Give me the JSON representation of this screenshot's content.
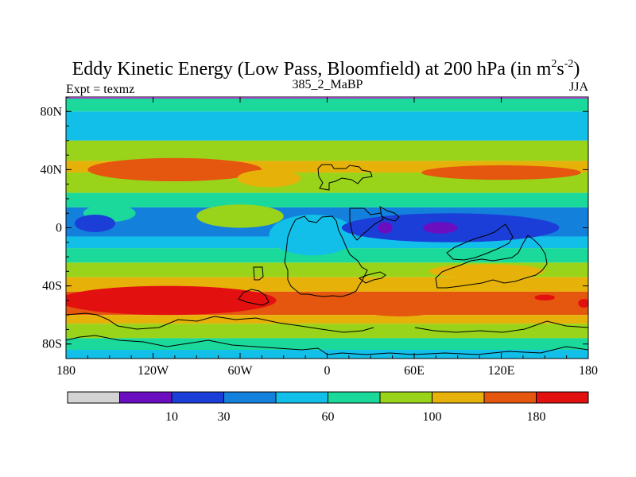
{
  "chart_data": {
    "type": "heatmap",
    "title": "Eddy Kinetic Energy (Low Pass, Bloomfield) at 200 hPa (in m",
    "title_units": {
      "base1": "2",
      "base2": "s",
      "exp2": "-2",
      "close": ")"
    },
    "left_label": "Expt = texmz",
    "center_label": "385_2_MaBP",
    "right_label": "JJA",
    "xlim": [
      -180,
      180
    ],
    "ylim": [
      -90,
      90
    ],
    "xticks": [
      {
        "value": -180,
        "label": "180"
      },
      {
        "value": -120,
        "label": "120W"
      },
      {
        "value": -60,
        "label": "60W"
      },
      {
        "value": 0,
        "label": "0"
      },
      {
        "value": 60,
        "label": "60E"
      },
      {
        "value": 120,
        "label": "120E"
      },
      {
        "value": 180,
        "label": "180"
      }
    ],
    "yticks": [
      {
        "value": 80,
        "label": "80N"
      },
      {
        "value": 40,
        "label": "40N"
      },
      {
        "value": 0,
        "label": "0"
      },
      {
        "value": -40,
        "label": "40S"
      },
      {
        "value": -80,
        "label": "80S"
      }
    ],
    "colorbar": {
      "colors": [
        "#d3d3d3",
        "#6a0ec0",
        "#1c3ed8",
        "#1380dc",
        "#12bfe8",
        "#1ad99b",
        "#99d41a",
        "#e6b20a",
        "#e5570e",
        "#e31010"
      ],
      "labels": [
        {
          "value": "10",
          "after_bin": 2
        },
        {
          "value": "30",
          "after_bin": 3
        },
        {
          "value": "60",
          "after_bin": 5
        },
        {
          "value": "100",
          "after_bin": 7
        },
        {
          "value": "180",
          "after_bin": 9
        }
      ]
    },
    "bands": [
      {
        "lat": [
          80,
          90
        ],
        "level": 5
      },
      {
        "lat": [
          60,
          80
        ],
        "level": 4
      },
      {
        "lat": [
          46,
          60
        ],
        "level": 6
      },
      {
        "lat": [
          38,
          46
        ],
        "level": 7
      },
      {
        "lat": [
          24,
          38
        ],
        "level": 6
      },
      {
        "lat": [
          14,
          24
        ],
        "level": 5
      },
      {
        "lat": [
          6,
          14
        ],
        "level": 3
      },
      {
        "lat": [
          -6,
          6
        ],
        "level": 3
      },
      {
        "lat": [
          -14,
          -6
        ],
        "level": 4
      },
      {
        "lat": [
          -24,
          -14
        ],
        "level": 5
      },
      {
        "lat": [
          -34,
          -24
        ],
        "level": 6
      },
      {
        "lat": [
          -44,
          -34
        ],
        "level": 7
      },
      {
        "lat": [
          -60,
          -44
        ],
        "level": 8
      },
      {
        "lat": [
          -66,
          -60
        ],
        "level": 7
      },
      {
        "lat": [
          -76,
          -66
        ],
        "level": 6
      },
      {
        "lat": [
          -84,
          -76
        ],
        "level": 5
      },
      {
        "lat": [
          -90,
          -84
        ],
        "level": 4
      }
    ],
    "blobs": [
      {
        "lon": -105,
        "lat": 40,
        "rlon": 60,
        "rlat": 8,
        "level": 8
      },
      {
        "lon": 120,
        "lat": 38,
        "rlon": 55,
        "rlat": 5,
        "level": 8
      },
      {
        "lon": -40,
        "lat": 34,
        "rlon": 22,
        "rlat": 6,
        "level": 7
      },
      {
        "lon": -150,
        "lat": 10,
        "rlon": 18,
        "rlat": 6,
        "level": 5
      },
      {
        "lon": -60,
        "lat": 8,
        "rlon": 30,
        "rlat": 8,
        "level": 6
      },
      {
        "lon": -10,
        "lat": -5,
        "rlon": 30,
        "rlat": 14,
        "level": 4
      },
      {
        "lon": 85,
        "lat": 0,
        "rlon": 75,
        "rlat": 10,
        "level": 2
      },
      {
        "lon": -160,
        "lat": 3,
        "rlon": 14,
        "rlat": 6,
        "level": 2
      },
      {
        "lon": 40,
        "lat": 0,
        "rlon": 5,
        "rlat": 4,
        "level": 1
      },
      {
        "lon": 78,
        "lat": 0,
        "rlon": 12,
        "rlat": 4,
        "level": 1
      },
      {
        "lon": -110,
        "lat": -50,
        "rlon": 75,
        "rlat": 10,
        "level": 9
      },
      {
        "lon": 150,
        "lat": -48,
        "rlon": 7,
        "rlat": 2,
        "level": 9
      },
      {
        "lon": 177,
        "lat": -52,
        "rlon": 4,
        "rlat": 3,
        "level": 9
      },
      {
        "lon": 50,
        "lat": -55,
        "rlon": 30,
        "rlat": 6,
        "level": 8
      },
      {
        "lon": 110,
        "lat": -30,
        "rlon": 40,
        "rlat": 5,
        "level": 7
      }
    ]
  }
}
